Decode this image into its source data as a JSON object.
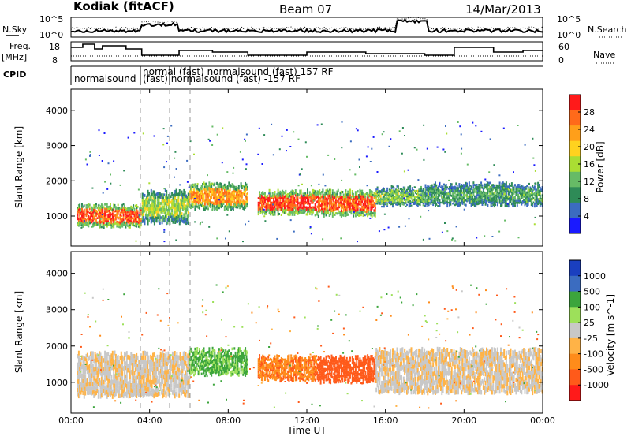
{
  "header": {
    "station": "Kodiak (fitACF)",
    "beam": "Beam 07",
    "date": "14/Mar/2013"
  },
  "panels_text": {
    "nsky_label": "N.Sky",
    "nsearch_label": "N.Search",
    "freq_label": "Freq.",
    "freq_unit": "[MHz]",
    "nave_label": "Nave",
    "cpid_label": "CPID",
    "noise_tick_top": "10^5",
    "noise_tick_bottom": "10^0",
    "freq_tick_top": "18",
    "freq_tick_bottom": "8",
    "nave_tick_top": "60",
    "nave_tick_bottom": "0",
    "cpid_row1": "normalsound",
    "cpid_row1b": "normal (fast) normalsound (fast) 157 RF",
    "cpid_row2": "(fast) normalsound (fast) -157 RF"
  },
  "colors": {
    "power": [
      "#1a1aff",
      "#3b6cc0",
      "#2e8b57",
      "#66bb66",
      "#aadd33",
      "#ffd21f",
      "#ff9f1a",
      "#ff6a1a",
      "#ff1a1a"
    ],
    "velocity": [
      "#ff1a1a",
      "#ff5a1a",
      "#ff8c1a",
      "#ffb347",
      "#c8c8c8",
      "#9de05a",
      "#3ca53c",
      "#3b6cc0",
      "#1a3fbf"
    ]
  },
  "chart_data": [
    {
      "type": "heatmap",
      "title": "",
      "xlabel": "",
      "ylabel": "Slant Range [km]",
      "xlim": [
        "00:00",
        "24:00"
      ],
      "ylim": [
        150,
        4600
      ],
      "y_ticks": [
        "1000",
        "2000",
        "3000",
        "4000"
      ],
      "colorbar": {
        "label": "Power [dB]",
        "ticks": [
          "28",
          "24",
          "20",
          "16",
          "12",
          "8",
          "4"
        ],
        "range": [
          0,
          30
        ]
      },
      "echo_bands": [
        {
          "start_h": 0.3,
          "end_h": 3.6,
          "range_lo_km": 700,
          "range_hi_km": 1300,
          "level": 26
        },
        {
          "start_h": 3.6,
          "end_h": 6.0,
          "range_lo_km": 800,
          "range_hi_km": 1700,
          "level": 14
        },
        {
          "start_h": 6.0,
          "end_h": 9.0,
          "range_lo_km": 1200,
          "range_hi_km": 1900,
          "level": 22
        },
        {
          "start_h": 9.5,
          "end_h": 12.5,
          "range_lo_km": 1050,
          "range_hi_km": 1700,
          "level": 27
        },
        {
          "start_h": 12.5,
          "end_h": 15.5,
          "range_lo_km": 1000,
          "range_hi_km": 1700,
          "level": 26
        },
        {
          "start_h": 15.5,
          "end_h": 18.0,
          "range_lo_km": 1300,
          "range_hi_km": 1800,
          "level": 13
        },
        {
          "start_h": 18.0,
          "end_h": 24.0,
          "range_lo_km": 1300,
          "range_hi_km": 1900,
          "level": 10
        }
      ]
    },
    {
      "type": "heatmap",
      "title": "",
      "xlabel": "Time UT",
      "ylabel": "Slant Range [km]",
      "xlim": [
        "00:00",
        "24:00"
      ],
      "ylim": [
        150,
        4600
      ],
      "x_ticks": [
        "00:00",
        "04:00",
        "08:00",
        "12:00",
        "16:00",
        "20:00",
        "00:00"
      ],
      "y_ticks": [
        "1000",
        "2000",
        "3000",
        "4000"
      ],
      "colorbar": {
        "label": "Velocity [m s^-1]",
        "ticks": [
          "1000",
          "500",
          "100",
          "25",
          "-25",
          "-100",
          "-500",
          "-1000"
        ],
        "range": [
          -1000,
          1000
        ]
      },
      "echo_bands": [
        {
          "start_h": 0.3,
          "end_h": 6.0,
          "range_lo_km": 600,
          "range_hi_km": 1800,
          "level": 0
        },
        {
          "start_h": 6.0,
          "end_h": 9.0,
          "range_lo_km": 1200,
          "range_hi_km": 1900,
          "level": 120
        },
        {
          "start_h": 9.5,
          "end_h": 12.5,
          "range_lo_km": 1050,
          "range_hi_km": 1700,
          "level": -80
        },
        {
          "start_h": 12.5,
          "end_h": 15.5,
          "range_lo_km": 1000,
          "range_hi_km": 1700,
          "level": -300
        },
        {
          "start_h": 15.5,
          "end_h": 24.0,
          "range_lo_km": 700,
          "range_hi_km": 1900,
          "level": 0
        }
      ]
    }
  ]
}
